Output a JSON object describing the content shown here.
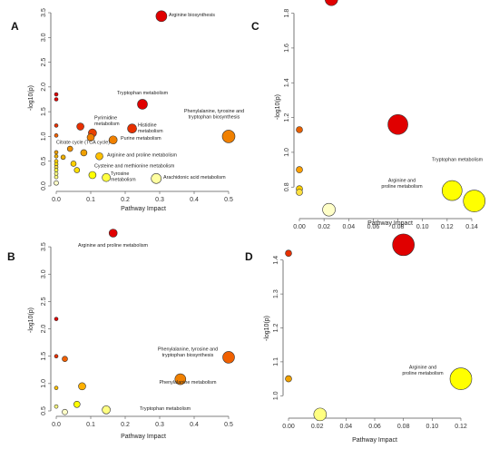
{
  "colors": {
    "low": "#ffffc8",
    "mid_low": "#ffff00",
    "mid": "#ffc000",
    "mid_high": "#f07000",
    "high": "#e00000"
  },
  "chart_data": [
    {
      "panel": "A",
      "type": "scatter",
      "xlabel": "Pathway Impact",
      "ylabel": "-log10(p)",
      "xlim": [
        0,
        0.5
      ],
      "ylim": [
        0,
        3.5
      ],
      "xticks": [
        "0.0",
        "0.1",
        "0.2",
        "0.3",
        "0.4",
        "0.5"
      ],
      "xtick_values": [
        0,
        0.1,
        0.2,
        0.3,
        0.4,
        0.5
      ],
      "yticks": [
        "0.0",
        "0.5",
        "1.0",
        "1.5",
        "2.0",
        "2.5",
        "3.0",
        "3.5"
      ],
      "ytick_values": [
        0,
        0.5,
        1.0,
        1.5,
        2.0,
        2.5,
        3.0,
        3.5
      ],
      "points": [
        {
          "x": 0.305,
          "y": 3.43,
          "r": 6,
          "color": "#e00000",
          "label": "Arginine biosynthesis"
        },
        {
          "x": 0.25,
          "y": 1.65,
          "r": 5.5,
          "color": "#e00000",
          "label": "Tryptophan metabolism"
        },
        {
          "x": 0.22,
          "y": 1.16,
          "r": 5,
          "color": "#e83000",
          "label": "Histidine metabolism"
        },
        {
          "x": 0.5,
          "y": 1.0,
          "r": 7,
          "color": "#f08000",
          "label": "Phenylalanine, tyrosine and tryptophan biosynthesis"
        },
        {
          "x": 0.07,
          "y": 1.2,
          "r": 4,
          "color": "#e83000",
          "label": ""
        },
        {
          "x": 0.105,
          "y": 1.07,
          "r": 4.5,
          "color": "#e84000",
          "label": "Pyrimidine metabolism"
        },
        {
          "x": 0.1,
          "y": 0.98,
          "r": 4,
          "color": "#f08000",
          "label": ""
        },
        {
          "x": 0.165,
          "y": 0.93,
          "r": 4.5,
          "color": "#f08000",
          "label": "Purine metabolism"
        },
        {
          "x": 0.04,
          "y": 0.75,
          "r": 3,
          "color": "#f09000",
          "label": "Citrate cycle (TCA cycle)"
        },
        {
          "x": 0.08,
          "y": 0.67,
          "r": 3.5,
          "color": "#f0a000",
          "label": ""
        },
        {
          "x": 0.125,
          "y": 0.6,
          "r": 4,
          "color": "#ffc000",
          "label": "Arginine and proline metabolism"
        },
        {
          "x": 0.02,
          "y": 0.58,
          "r": 2.5,
          "color": "#f0b000",
          "label": ""
        },
        {
          "x": 0.05,
          "y": 0.45,
          "r": 3,
          "color": "#ffd000",
          "label": ""
        },
        {
          "x": 0.06,
          "y": 0.32,
          "r": 3,
          "color": "#ffe000",
          "label": ""
        },
        {
          "x": 0.105,
          "y": 0.22,
          "r": 4,
          "color": "#ffff00",
          "label": "Cysteine and methionine metabolism"
        },
        {
          "x": 0.145,
          "y": 0.17,
          "r": 4.5,
          "color": "#ffff40",
          "label": "Tyrosine metabolism"
        },
        {
          "x": 0.29,
          "y": 0.15,
          "r": 5.5,
          "color": "#ffffa0",
          "label": "Arachidonic acid metabolism"
        },
        {
          "x": 0.0,
          "y": 1.85,
          "r": 2,
          "color": "#e00000",
          "label": ""
        },
        {
          "x": 0.0,
          "y": 1.75,
          "r": 2,
          "color": "#e00000",
          "label": ""
        },
        {
          "x": 0.0,
          "y": 1.22,
          "r": 2,
          "color": "#e83000",
          "label": ""
        },
        {
          "x": 0.0,
          "y": 1.02,
          "r": 2,
          "color": "#f06000",
          "label": ""
        },
        {
          "x": 0.0,
          "y": 0.68,
          "r": 2,
          "color": "#f0a000",
          "label": ""
        },
        {
          "x": 0.0,
          "y": 0.6,
          "r": 2,
          "color": "#f0b000",
          "label": ""
        },
        {
          "x": 0.0,
          "y": 0.5,
          "r": 2,
          "color": "#ffd000",
          "label": ""
        },
        {
          "x": 0.0,
          "y": 0.44,
          "r": 2,
          "color": "#ffe000",
          "label": ""
        },
        {
          "x": 0.0,
          "y": 0.38,
          "r": 2,
          "color": "#ffe040",
          "label": ""
        },
        {
          "x": 0.0,
          "y": 0.32,
          "r": 2,
          "color": "#ffff40",
          "label": ""
        },
        {
          "x": 0.0,
          "y": 0.25,
          "r": 2,
          "color": "#ffff80",
          "label": ""
        },
        {
          "x": 0.0,
          "y": 0.18,
          "r": 2,
          "color": "#ffff80",
          "label": ""
        },
        {
          "x": 0.0,
          "y": 0.06,
          "r": 2.5,
          "color": "#ffffc8",
          "label": ""
        }
      ]
    },
    {
      "panel": "B",
      "type": "scatter",
      "xlabel": "Pathway Impact",
      "ylabel": "-log10(p)",
      "xlim": [
        0,
        0.5
      ],
      "ylim": [
        0.5,
        3.75
      ],
      "xticks": [
        "0.0",
        "0.1",
        "0.2",
        "0.3",
        "0.4",
        "0.5"
      ],
      "xtick_values": [
        0,
        0.1,
        0.2,
        0.3,
        0.4,
        0.5
      ],
      "yticks": [
        "0.5",
        "1.0",
        "1.5",
        "2.0",
        "2.5",
        "3.0",
        "3.5"
      ],
      "ytick_values": [
        0.5,
        1.0,
        1.5,
        2.0,
        2.5,
        3.0,
        3.5
      ],
      "points": [
        {
          "x": 0.165,
          "y": 3.75,
          "r": 4.5,
          "color": "#e00000",
          "label": "Arginine and proline metabolism"
        },
        {
          "x": 0.5,
          "y": 1.48,
          "r": 6.5,
          "color": "#f06000",
          "label": "Phenylalanine, tyrosine and tryptophan biosynthesis"
        },
        {
          "x": 0.36,
          "y": 1.08,
          "r": 6,
          "color": "#f08000",
          "label": "Phenylalanine metabolism"
        },
        {
          "x": 0.145,
          "y": 0.52,
          "r": 4.5,
          "color": "#ffff80",
          "label": "Tryptophan metabolism"
        },
        {
          "x": 0.075,
          "y": 0.95,
          "r": 4,
          "color": "#ffb000",
          "label": ""
        },
        {
          "x": 0.06,
          "y": 0.62,
          "r": 3.5,
          "color": "#ffff00",
          "label": ""
        },
        {
          "x": 0.025,
          "y": 1.45,
          "r": 3,
          "color": "#f06000",
          "label": ""
        },
        {
          "x": 0.025,
          "y": 0.48,
          "r": 3,
          "color": "#ffffc8",
          "label": ""
        },
        {
          "x": 0.0,
          "y": 2.18,
          "r": 2,
          "color": "#e00000",
          "label": ""
        },
        {
          "x": 0.0,
          "y": 1.5,
          "r": 2,
          "color": "#e83000",
          "label": ""
        },
        {
          "x": 0.0,
          "y": 0.92,
          "r": 2,
          "color": "#ffc000",
          "label": ""
        },
        {
          "x": 0.0,
          "y": 0.58,
          "r": 2,
          "color": "#ffff80",
          "label": ""
        }
      ]
    },
    {
      "panel": "C",
      "type": "scatter",
      "xlabel": "Pathway Impact",
      "ylabel": "-log10(p)",
      "xlim": [
        0,
        0.14
      ],
      "ylim": [
        0.65,
        1.85
      ],
      "xticks": [
        "0.00",
        "0.02",
        "0.04",
        "0.06",
        "0.08",
        "0.10",
        "0.12",
        "0.14"
      ],
      "xtick_values": [
        0,
        0.02,
        0.04,
        0.06,
        0.08,
        0.1,
        0.12,
        0.14
      ],
      "yticks": [
        "0.8",
        "1.0",
        "1.2",
        "1.4",
        "1.6",
        "1.8"
      ],
      "ytick_values": [
        0.8,
        1.0,
        1.2,
        1.4,
        1.6,
        1.8
      ],
      "points": [
        {
          "x": 0.026,
          "y": 1.88,
          "r": 7,
          "color": "#e00000",
          "label": ""
        },
        {
          "x": 0.08,
          "y": 1.16,
          "r": 11,
          "color": "#e00000",
          "label": ""
        },
        {
          "x": 0.124,
          "y": 0.78,
          "r": 11,
          "color": "#ffff00",
          "label": "Tryptophan metabolism"
        },
        {
          "x": 0.142,
          "y": 0.72,
          "r": 12,
          "color": "#ffff00",
          "label": "Arginine and proline metabolism"
        },
        {
          "x": 0.024,
          "y": 0.67,
          "r": 7,
          "color": "#ffffc8",
          "label": ""
        },
        {
          "x": 0.0,
          "y": 1.13,
          "r": 3.5,
          "color": "#e86000",
          "label": ""
        },
        {
          "x": 0.0,
          "y": 0.9,
          "r": 3.5,
          "color": "#ffa000",
          "label": ""
        },
        {
          "x": 0.0,
          "y": 0.79,
          "r": 3.5,
          "color": "#ffd000",
          "label": ""
        },
        {
          "x": 0.0,
          "y": 0.77,
          "r": 3.5,
          "color": "#ffe040",
          "label": ""
        }
      ]
    },
    {
      "panel": "D",
      "type": "scatter",
      "xlabel": "Pathway Impact",
      "ylabel": "-log10(p)",
      "xlim": [
        0,
        0.12
      ],
      "ylim": [
        0.95,
        1.45
      ],
      "xticks": [
        "0.00",
        "0.02",
        "0.04",
        "0.06",
        "0.08",
        "0.10",
        "0.12"
      ],
      "xtick_values": [
        0,
        0.02,
        0.04,
        0.06,
        0.08,
        0.1,
        0.12
      ],
      "yticks": [
        "1.0",
        "1.1",
        "1.2",
        "1.3",
        "1.4"
      ],
      "ytick_values": [
        1.0,
        1.1,
        1.2,
        1.3,
        1.4
      ],
      "points": [
        {
          "x": 0.08,
          "y": 1.445,
          "r": 12,
          "color": "#e00000",
          "label": ""
        },
        {
          "x": 0.12,
          "y": 1.05,
          "r": 12,
          "color": "#ffff00",
          "label": "Arginine and proline metabolism"
        },
        {
          "x": 0.022,
          "y": 0.945,
          "r": 7,
          "color": "#ffff80",
          "label": ""
        },
        {
          "x": 0.0,
          "y": 1.42,
          "r": 3.5,
          "color": "#e83000",
          "label": ""
        },
        {
          "x": 0.0,
          "y": 1.05,
          "r": 3.5,
          "color": "#f0a000",
          "label": ""
        }
      ]
    }
  ]
}
